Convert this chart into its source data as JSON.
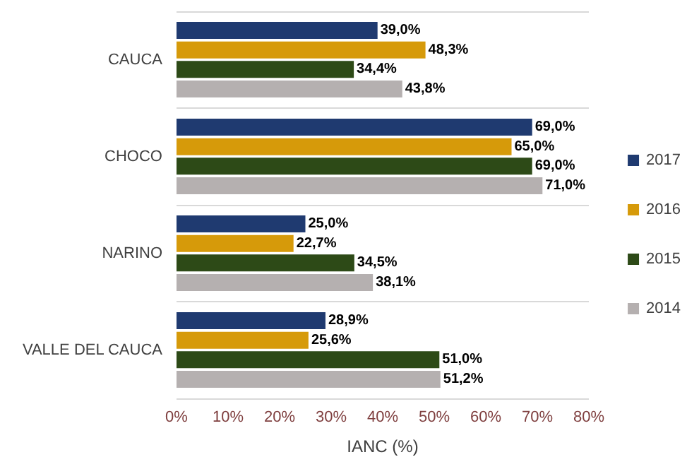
{
  "chart_data": {
    "type": "bar",
    "orientation": "horizontal",
    "xlabel": "IANC (%)",
    "categories": [
      "CAUCA",
      "CHOCO",
      "NARINO",
      "VALLE DEL CAUCA"
    ],
    "series": [
      {
        "name": "2017",
        "color": "#1f3a70",
        "values": [
          39.0,
          69.0,
          25.0,
          28.9
        ],
        "value_labels": [
          "39,0%",
          "69,0%",
          "25,0%",
          "28,9%"
        ]
      },
      {
        "name": "2016",
        "color": "#d69a0a",
        "values": [
          48.3,
          65.0,
          22.7,
          25.6
        ],
        "value_labels": [
          "48,3%",
          "65,0%",
          "22,7%",
          "25,6%"
        ]
      },
      {
        "name": "2015",
        "color": "#2d4a17",
        "values": [
          34.4,
          69.0,
          34.5,
          51.0
        ],
        "value_labels": [
          "34,4%",
          "69,0%",
          "34,5%",
          "51,0%"
        ]
      },
      {
        "name": "2014",
        "color": "#b5b0b0",
        "values": [
          43.8,
          71.0,
          38.1,
          51.2
        ],
        "value_labels": [
          "43,8%",
          "71,0%",
          "38,1%",
          "51,2%"
        ]
      }
    ],
    "xlim": [
      0,
      80
    ],
    "xticks": [
      {
        "value": 0,
        "label": "0%"
      },
      {
        "value": 10,
        "label": "10%"
      },
      {
        "value": 20,
        "label": "20%"
      },
      {
        "value": 30,
        "label": "30%"
      },
      {
        "value": 40,
        "label": "40%"
      },
      {
        "value": 50,
        "label": "50%"
      },
      {
        "value": 60,
        "label": "60%"
      },
      {
        "value": 70,
        "label": "70%"
      },
      {
        "value": 80,
        "label": "80%"
      }
    ],
    "grid": "y",
    "legend": "right"
  }
}
